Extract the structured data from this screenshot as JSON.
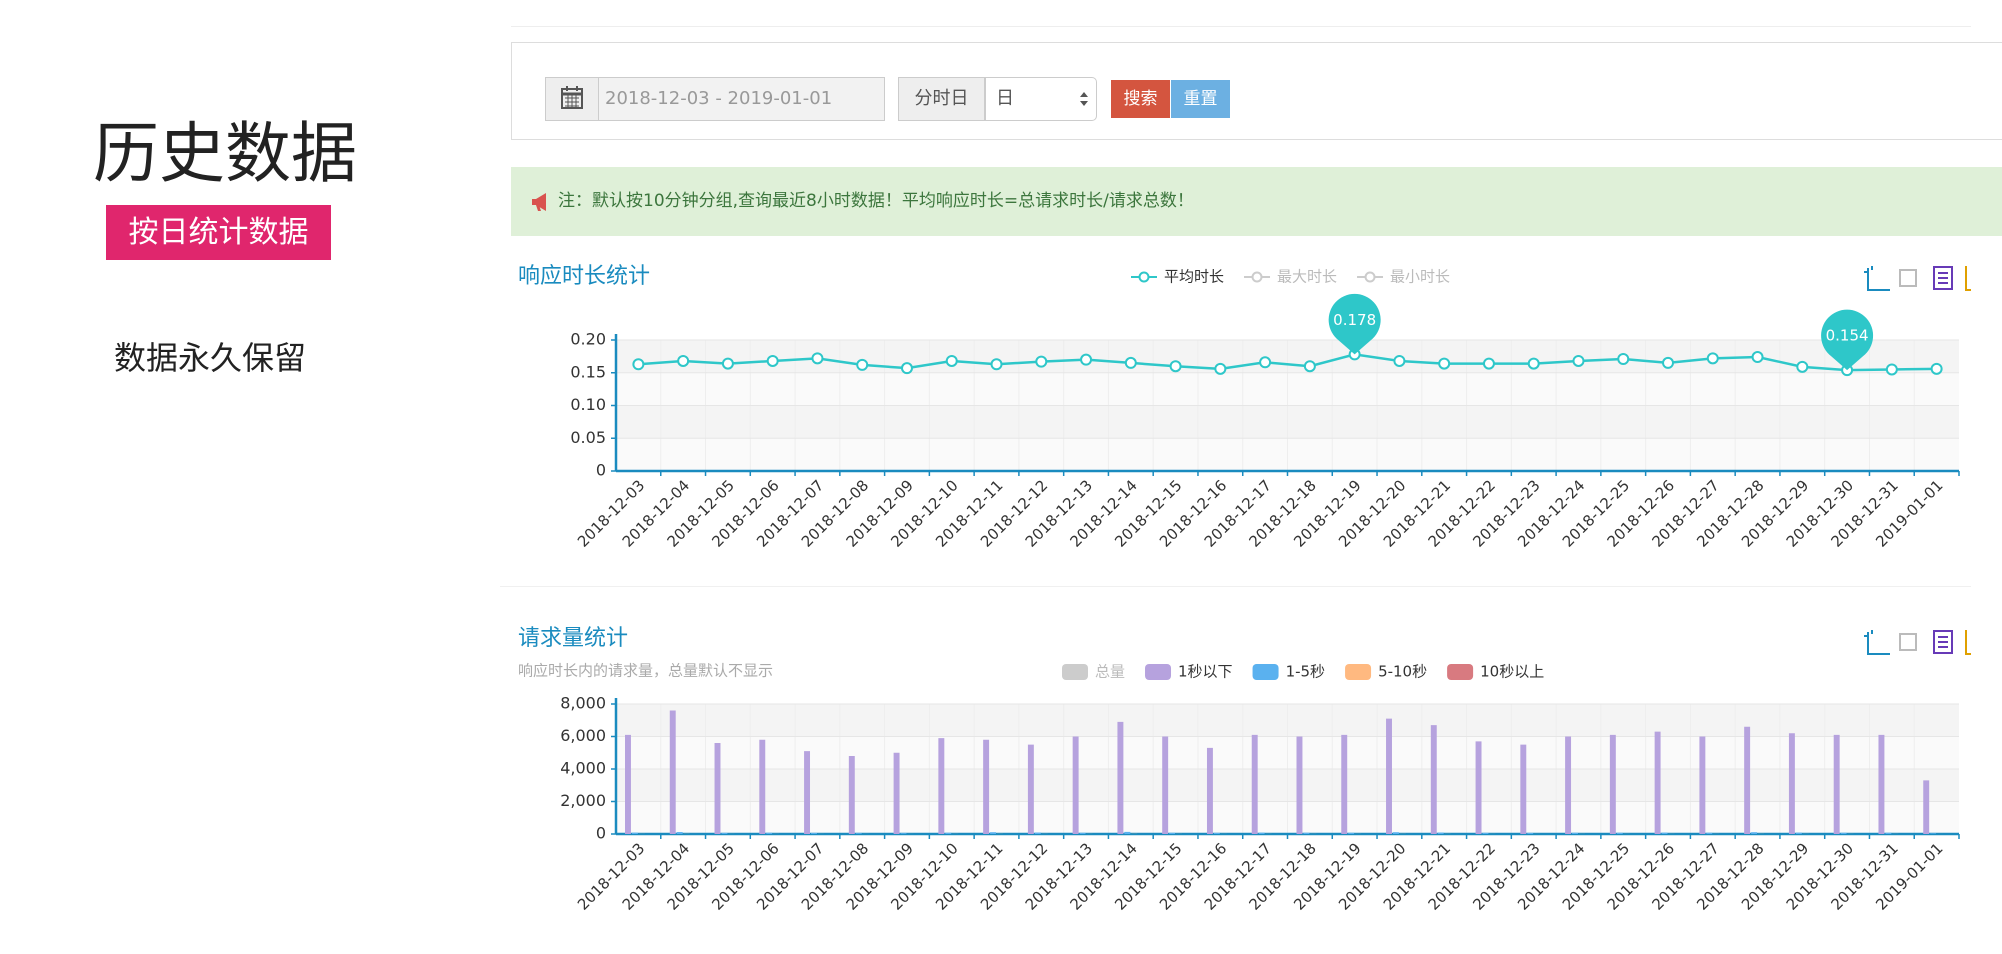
{
  "sidebar": {
    "title": "历史数据",
    "badge": "按日统计数据",
    "note": "数据永久保留"
  },
  "filter": {
    "date_range": "2018-12-03 - 2019-01-01",
    "granularity_label": "分时日",
    "granularity": "日",
    "search_button": "搜索",
    "reset_button": "重置"
  },
  "notice": "注：默认按10分钟分组,查询最近8小时数据！平均响应时长=总请求时长/请求总数！",
  "chart_data": [
    {
      "type": "line",
      "title": "响应时长统计",
      "categories": [
        "2018-12-03",
        "2018-12-04",
        "2018-12-05",
        "2018-12-06",
        "2018-12-07",
        "2018-12-08",
        "2018-12-09",
        "2018-12-10",
        "2018-12-11",
        "2018-12-12",
        "2018-12-13",
        "2018-12-14",
        "2018-12-15",
        "2018-12-16",
        "2018-12-17",
        "2018-12-18",
        "2018-12-19",
        "2018-12-20",
        "2018-12-21",
        "2018-12-22",
        "2018-12-23",
        "2018-12-24",
        "2018-12-25",
        "2018-12-26",
        "2018-12-27",
        "2018-12-28",
        "2018-12-29",
        "2018-12-30",
        "2018-12-31",
        "2019-01-01"
      ],
      "series": [
        {
          "name": "平均时长",
          "color": "#2ec7c9",
          "visible": true,
          "values": [
            0.163,
            0.168,
            0.164,
            0.168,
            0.172,
            0.162,
            0.157,
            0.168,
            0.163,
            0.167,
            0.17,
            0.165,
            0.16,
            0.156,
            0.166,
            0.16,
            0.178,
            0.168,
            0.164,
            0.164,
            0.164,
            0.168,
            0.171,
            0.165,
            0.172,
            0.174,
            0.159,
            0.154,
            0.155,
            0.156
          ]
        },
        {
          "name": "最大时长",
          "color": "#cccccc",
          "visible": false,
          "values": [
            null,
            null,
            null,
            null,
            null,
            null,
            null,
            null,
            null,
            null,
            null,
            null,
            null,
            null,
            null,
            null,
            null,
            null,
            null,
            null,
            null,
            null,
            null,
            null,
            null,
            null,
            null,
            null,
            null,
            null
          ]
        },
        {
          "name": "最小时长",
          "color": "#cccccc",
          "visible": false,
          "values": [
            null,
            null,
            null,
            null,
            null,
            null,
            null,
            null,
            null,
            null,
            null,
            null,
            null,
            null,
            null,
            null,
            null,
            null,
            null,
            null,
            null,
            null,
            null,
            null,
            null,
            null,
            null,
            null,
            null,
            null
          ]
        }
      ],
      "mark_points": [
        {
          "x": "2018-12-19",
          "value": 0.178
        },
        {
          "x": "2018-12-30",
          "value": 0.154
        }
      ],
      "ylim": [
        0,
        0.2
      ],
      "yticks": [
        0,
        0.05,
        {
          "value": 0.1,
          "label": "0.10"
        },
        0.15,
        {
          "value": 0.2,
          "label": "0.20"
        }
      ]
    },
    {
      "type": "bar",
      "title": "请求量统计",
      "subtitle": "响应时长内的请求量，总量默认不显示",
      "categories": [
        "2018-12-03",
        "2018-12-04",
        "2018-12-05",
        "2018-12-06",
        "2018-12-07",
        "2018-12-08",
        "2018-12-09",
        "2018-12-10",
        "2018-12-11",
        "2018-12-12",
        "2018-12-13",
        "2018-12-14",
        "2018-12-15",
        "2018-12-16",
        "2018-12-17",
        "2018-12-18",
        "2018-12-19",
        "2018-12-20",
        "2018-12-21",
        "2018-12-22",
        "2018-12-23",
        "2018-12-24",
        "2018-12-25",
        "2018-12-26",
        "2018-12-27",
        "2018-12-28",
        "2018-12-29",
        "2018-12-30",
        "2018-12-31",
        "2019-01-01"
      ],
      "series": [
        {
          "name": "总量",
          "color": "#c8c8c8",
          "visible": false,
          "values": [
            null,
            null,
            null,
            null,
            null,
            null,
            null,
            null,
            null,
            null,
            null,
            null,
            null,
            null,
            null,
            null,
            null,
            null,
            null,
            null,
            null,
            null,
            null,
            null,
            null,
            null,
            null,
            null,
            null,
            null
          ]
        },
        {
          "name": "1秒以下",
          "color": "#b6a2de",
          "visible": true,
          "values": [
            6100,
            7600,
            5600,
            5800,
            5100,
            4800,
            5000,
            5900,
            5800,
            5500,
            6000,
            6900,
            6000,
            5300,
            6100,
            6000,
            6100,
            7100,
            6700,
            5700,
            5500,
            6000,
            6100,
            6300,
            6000,
            6600,
            6200,
            6100,
            6100,
            3300
          ]
        },
        {
          "name": "1-5秒",
          "color": "#5ab1ef",
          "visible": true,
          "values": [
            80,
            120,
            60,
            70,
            60,
            50,
            50,
            70,
            110,
            90,
            70,
            130,
            70,
            60,
            80,
            70,
            70,
            110,
            90,
            60,
            60,
            70,
            70,
            80,
            70,
            110,
            80,
            70,
            70,
            40
          ]
        },
        {
          "name": "5-10秒",
          "color": "#ffb980",
          "visible": true,
          "values": [
            5,
            8,
            4,
            5,
            4,
            3,
            3,
            5,
            6,
            5,
            5,
            8,
            5,
            4,
            5,
            5,
            5,
            7,
            6,
            4,
            4,
            5,
            5,
            5,
            5,
            6,
            5,
            5,
            5,
            2
          ]
        },
        {
          "name": "10秒以上",
          "color": "#d87a80",
          "visible": true,
          "values": [
            1,
            2,
            1,
            1,
            1,
            1,
            1,
            1,
            1,
            1,
            1,
            2,
            1,
            1,
            1,
            1,
            1,
            2,
            1,
            1,
            1,
            1,
            1,
            1,
            1,
            1,
            1,
            1,
            1,
            1
          ]
        }
      ],
      "ylim": [
        0,
        8000
      ],
      "yticks": [
        0,
        {
          "value": 2000,
          "label": "2,000"
        },
        {
          "value": 4000,
          "label": "4,000"
        },
        {
          "value": 6000,
          "label": "6,000"
        },
        {
          "value": 8000,
          "label": "8,000"
        }
      ]
    }
  ]
}
